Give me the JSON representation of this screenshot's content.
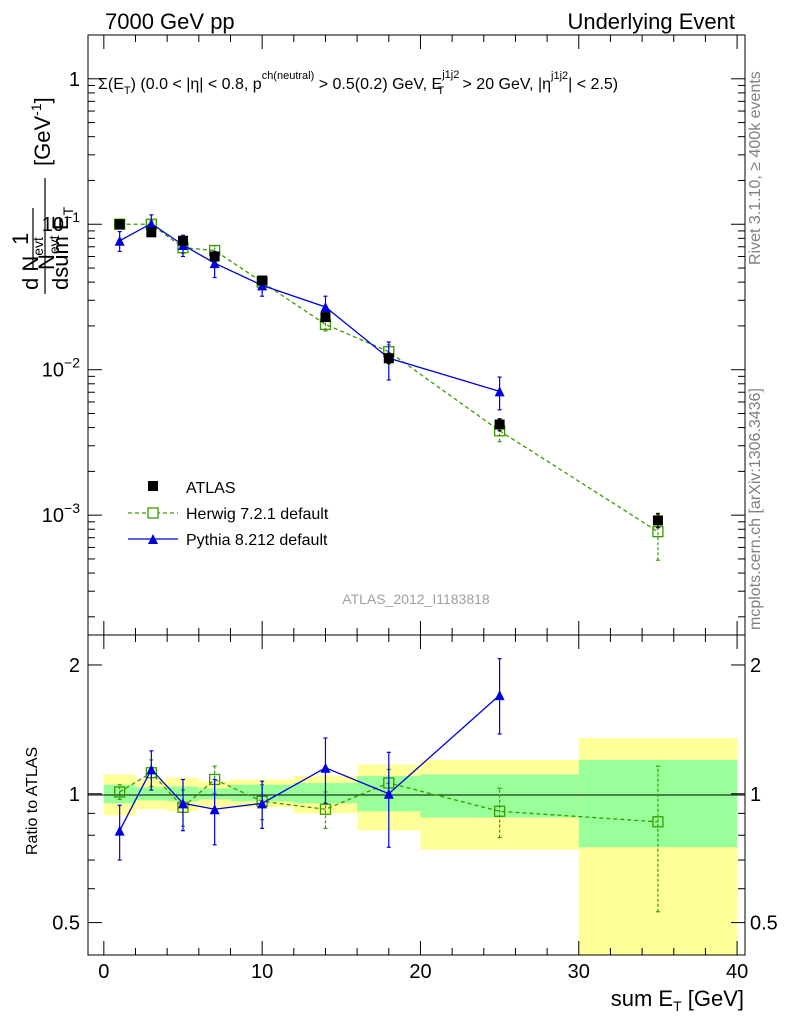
{
  "header": {
    "left": "7000 GeV pp",
    "right": "Underlying Event"
  },
  "side_labels": {
    "rivet": "Rivet 3.1.10, ≥ 400k events",
    "mcplots": "mcplots.cern.ch [arXiv:1306.3436]"
  },
  "chart_data": [
    {
      "type": "line",
      "panel": "main",
      "title": "Σ(E_T) (0.0 < |η| < 0.8, p_T^ch(neutral) > 0.5(0.2) GeV, E_T^j1j2 > 20 GeV, |η^j1j2| < 2.5)",
      "title_parts": {
        "a": "Σ(E",
        "a_sub": "T",
        "b": ") (0.0 < |η| < 0.8, p",
        "c_sup": "ch(neutral)",
        "d": " > 0.5(0.2) GeV, E",
        "e_sup": "j1j2",
        "e_sub": "T",
        "f": " > 20 GeV, |η",
        "g_sup": "j1j2",
        "h": "| < 2.5)"
      },
      "ylabel": "1/N_evt dN_evt/dsum E_T [GeV^-1]",
      "ylabel_parts": {
        "one": "1",
        "n": "N",
        "n_sub": "evt",
        "dn": "d N",
        "dn_sub": "evt",
        "dsum": "dsum E",
        "dsum_sub": "T",
        "unit": "[GeV",
        "unit_sup": "-1",
        "unit_close": "]"
      },
      "xlabel": "sum E_T [GeV]",
      "xlim": [
        -1,
        40.5
      ],
      "ylog": true,
      "ylim": [
        0.00015,
        2.0
      ],
      "ytick_labels": [
        {
          "value": 1,
          "base": "1",
          "exp": ""
        },
        {
          "value": 0.1,
          "base": "10",
          "exp": "−1"
        },
        {
          "value": 0.01,
          "base": "10",
          "exp": "−2"
        },
        {
          "value": 0.001,
          "base": "10",
          "exp": "−3"
        }
      ],
      "watermark": "ATLAS_2012_I1183818",
      "legend": {
        "position": "bottom-left",
        "entries": [
          "ATLAS",
          "Herwig 7.2.1 default",
          "Pythia 8.212 default"
        ]
      },
      "series": [
        {
          "name": "ATLAS",
          "color": "#000000",
          "marker": "square-filled",
          "x": [
            1,
            3,
            5,
            7,
            10,
            14,
            18,
            25,
            35
          ],
          "xerr": [
            1,
            1,
            1,
            1,
            2,
            2,
            2,
            5,
            5
          ],
          "y": [
            0.1,
            0.088,
            0.077,
            0.06,
            0.041,
            0.023,
            0.012,
            0.0042,
            0.00092
          ],
          "yerr_lo": [
            0.003,
            0.003,
            0.003,
            0.002,
            0.002,
            0.0015,
            0.001,
            0.0004,
            0.0001
          ],
          "yerr_hi": [
            0.003,
            0.003,
            0.003,
            0.002,
            0.002,
            0.0015,
            0.001,
            0.0004,
            0.0001
          ]
        },
        {
          "name": "Herwig 7.2.1 default",
          "color": "#3a9a00",
          "marker": "square-open",
          "dashed": true,
          "x": [
            1,
            3,
            5,
            7,
            10,
            14,
            18,
            25,
            35
          ],
          "y": [
            0.1,
            0.1,
            0.069,
            0.066,
            0.04,
            0.0205,
            0.0133,
            0.0038,
            0.00077
          ],
          "yerr_lo": [
            0.004,
            0.006,
            0.006,
            0.005,
            0.004,
            0.002,
            0.0015,
            0.0006,
            0.00028
          ],
          "yerr_hi": [
            0.004,
            0.006,
            0.006,
            0.005,
            0.004,
            0.002,
            0.0015,
            0.0006,
            0.00026
          ]
        },
        {
          "name": "Pythia 8.212 default",
          "color": "#0000dd",
          "marker": "triangle-filled",
          "x": [
            1,
            3,
            5,
            7,
            10,
            14,
            18,
            25
          ],
          "y": [
            0.077,
            0.101,
            0.072,
            0.054,
            0.038,
            0.027,
            0.012,
            0.0071
          ],
          "yerr_lo": [
            0.012,
            0.015,
            0.012,
            0.011,
            0.006,
            0.005,
            0.0035,
            0.0018
          ],
          "yerr_hi": [
            0.012,
            0.015,
            0.012,
            0.011,
            0.006,
            0.005,
            0.0035,
            0.0018
          ]
        }
      ]
    },
    {
      "type": "line",
      "panel": "ratio",
      "ylabel": "Ratio to ATLAS",
      "xlabel": "sum E_T [GeV]",
      "xlim": [
        -1,
        40.5
      ],
      "ylog": true,
      "ylim": [
        0.42,
        2.35
      ],
      "ytick_labels": [
        {
          "value": 0.5,
          "label": "0.5"
        },
        {
          "value": 1,
          "label": "1"
        },
        {
          "value": 2,
          "label": "2"
        }
      ],
      "xtick_labels": [
        {
          "value": 0,
          "label": "0"
        },
        {
          "value": 10,
          "label": "10"
        },
        {
          "value": 20,
          "label": "20"
        },
        {
          "value": 30,
          "label": "30"
        },
        {
          "value": 40,
          "label": "40"
        }
      ],
      "bands": {
        "bins": [
          0,
          2,
          4,
          6,
          8,
          12,
          16,
          20,
          30,
          40
        ],
        "yellow_lo": [
          0.89,
          0.92,
          0.91,
          0.93,
          0.93,
          0.9,
          0.82,
          0.74,
          0.39
        ],
        "yellow_hi": [
          1.11,
          1.08,
          1.09,
          1.07,
          1.08,
          1.1,
          1.17,
          1.2,
          1.35
        ],
        "green_lo": [
          0.95,
          0.965,
          0.96,
          0.97,
          0.96,
          0.95,
          0.91,
          0.88,
          0.75
        ],
        "green_hi": [
          1.05,
          1.035,
          1.04,
          1.03,
          1.05,
          1.06,
          1.1,
          1.11,
          1.2
        ]
      },
      "series": [
        {
          "name": "Herwig 7.2.1 default",
          "color": "#3a9a00",
          "marker": "square-open",
          "dashed": true,
          "x": [
            1,
            3,
            5,
            7,
            10,
            14,
            18,
            25,
            35
          ],
          "y": [
            1.01,
            1.12,
            0.93,
            1.08,
            0.96,
            0.92,
            1.06,
            0.91,
            0.86
          ],
          "yerr_lo": [
            0.04,
            0.08,
            0.09,
            0.08,
            0.09,
            0.09,
            0.08,
            0.12,
            0.33
          ],
          "yerr_hi": [
            0.04,
            0.08,
            0.09,
            0.08,
            0.09,
            0.09,
            0.08,
            0.12,
            0.3
          ]
        },
        {
          "name": "Pythia 8.212 default",
          "color": "#0000dd",
          "marker": "triangle-filled",
          "x": [
            1,
            3,
            5,
            7,
            10,
            14,
            18,
            25
          ],
          "y": [
            0.82,
            1.14,
            0.95,
            0.92,
            0.95,
            1.15,
            1.0,
            1.7
          ],
          "yerr_lo": [
            0.12,
            0.12,
            0.13,
            0.16,
            0.12,
            0.2,
            0.25,
            0.32
          ],
          "yerr_hi": [
            0.12,
            0.12,
            0.13,
            0.16,
            0.12,
            0.2,
            0.25,
            0.37
          ]
        }
      ]
    }
  ]
}
